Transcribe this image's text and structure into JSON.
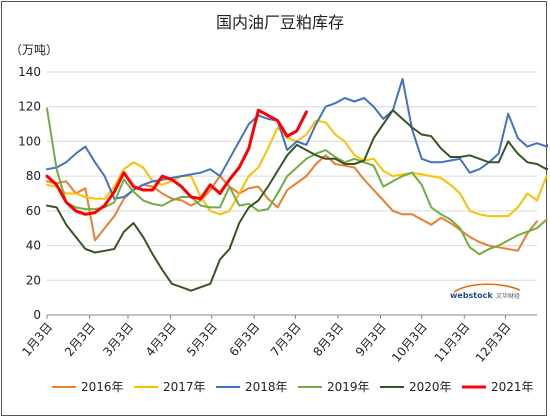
{
  "chart_data": {
    "type": "line",
    "title": "国内油厂豆粕库存",
    "ylabel": "（万吨）",
    "ylim": [
      0,
      140
    ],
    "yticks": [
      0,
      20,
      40,
      60,
      80,
      100,
      120,
      140
    ],
    "x_domain": [
      0,
      51
    ],
    "x_ticks": [
      {
        "label": "1月3日",
        "pos": 0
      },
      {
        "label": "2月3日",
        "pos": 4.43
      },
      {
        "label": "3月3日",
        "pos": 8.43
      },
      {
        "label": "4月3日",
        "pos": 12.86
      },
      {
        "label": "5月3日",
        "pos": 17.14
      },
      {
        "label": "6月3日",
        "pos": 21.57
      },
      {
        "label": "7月3日",
        "pos": 25.86
      },
      {
        "label": "8月3日",
        "pos": 30.29
      },
      {
        "label": "9月3日",
        "pos": 34.71
      },
      {
        "label": "10月3日",
        "pos": 39
      },
      {
        "label": "11月3日",
        "pos": 43.43
      },
      {
        "label": "12月3日",
        "pos": 47.71
      }
    ],
    "grid": "horizontal",
    "legend": "bottom",
    "series": [
      {
        "name": "2016年",
        "color": "#ed7d31",
        "width": 2,
        "values": [
          77,
          76,
          77,
          70,
          73,
          43,
          50,
          57,
          67,
          72,
          75,
          74,
          70,
          67,
          66,
          63,
          66,
          72,
          80,
          74,
          70,
          73,
          74,
          67,
          62,
          72,
          76,
          80,
          87,
          92,
          87,
          86,
          85,
          78,
          72,
          66,
          60,
          58,
          58,
          55,
          52,
          56,
          53,
          49,
          45,
          42,
          40,
          39,
          38,
          37,
          47,
          54
        ]
      },
      {
        "name": "2017年",
        "color": "#ffc000",
        "width": 2,
        "values": [
          75,
          74,
          70,
          70,
          68,
          67,
          67,
          74,
          84,
          88,
          85,
          77,
          75,
          77,
          80,
          80,
          68,
          60,
          58,
          60,
          70,
          80,
          85,
          96,
          108,
          102,
          100,
          104,
          112,
          111,
          104,
          100,
          92,
          89,
          90,
          83,
          80,
          81,
          82,
          81,
          80,
          79,
          75,
          70,
          60,
          58,
          57,
          57,
          57,
          62,
          70,
          66,
          80
        ]
      },
      {
        "name": "2018年",
        "color": "#4472c4",
        "width": 2,
        "values": [
          84,
          85,
          88,
          93,
          97,
          88,
          80,
          67,
          68,
          72,
          75,
          77,
          78,
          79,
          80,
          81,
          82,
          84,
          80,
          90,
          100,
          110,
          115,
          113,
          112,
          95,
          100,
          98,
          110,
          120,
          122,
          125,
          123,
          125,
          120,
          113,
          118,
          136,
          107,
          90,
          88,
          88,
          89,
          90,
          82,
          84,
          88,
          93,
          116,
          102,
          97,
          99,
          97,
          103,
          118
        ]
      },
      {
        "name": "2019年",
        "color": "#70ad47",
        "width": 2,
        "values": [
          119,
          84,
          65,
          62,
          61,
          61,
          62,
          65,
          78,
          71,
          66,
          64,
          63,
          66,
          68,
          68,
          63,
          62,
          62,
          74,
          63,
          64,
          60,
          61,
          70,
          80,
          85,
          90,
          93,
          95,
          91,
          88,
          90,
          88,
          86,
          74,
          77,
          80,
          82,
          75,
          62,
          58,
          55,
          50,
          39,
          35,
          38,
          40,
          43,
          46,
          48,
          50,
          55
        ]
      },
      {
        "name": "2020年",
        "color": "#375623",
        "width": 2,
        "values": [
          63,
          62,
          52,
          45,
          38,
          36,
          37,
          38,
          48,
          53,
          45,
          35,
          26,
          18,
          16,
          14,
          16,
          18,
          32,
          38,
          53,
          62,
          66,
          74,
          83,
          92,
          98,
          95,
          92,
          90,
          90,
          87,
          87,
          89,
          102,
          110,
          118,
          113,
          108,
          104,
          103,
          96,
          91,
          91,
          92,
          90,
          88,
          88,
          100,
          93,
          88,
          87,
          84,
          85
        ]
      },
      {
        "name": "2021年",
        "color": "#ff0000",
        "width": 3,
        "values": [
          80,
          75,
          65,
          60,
          58,
          59,
          63,
          71,
          82,
          74,
          72,
          72,
          80,
          78,
          74,
          68,
          67,
          75,
          70,
          78,
          85,
          96,
          118,
          115,
          112,
          103,
          106,
          117
        ]
      }
    ]
  },
  "watermark": {
    "brand": "webstock",
    "tagline": "文华财经"
  }
}
